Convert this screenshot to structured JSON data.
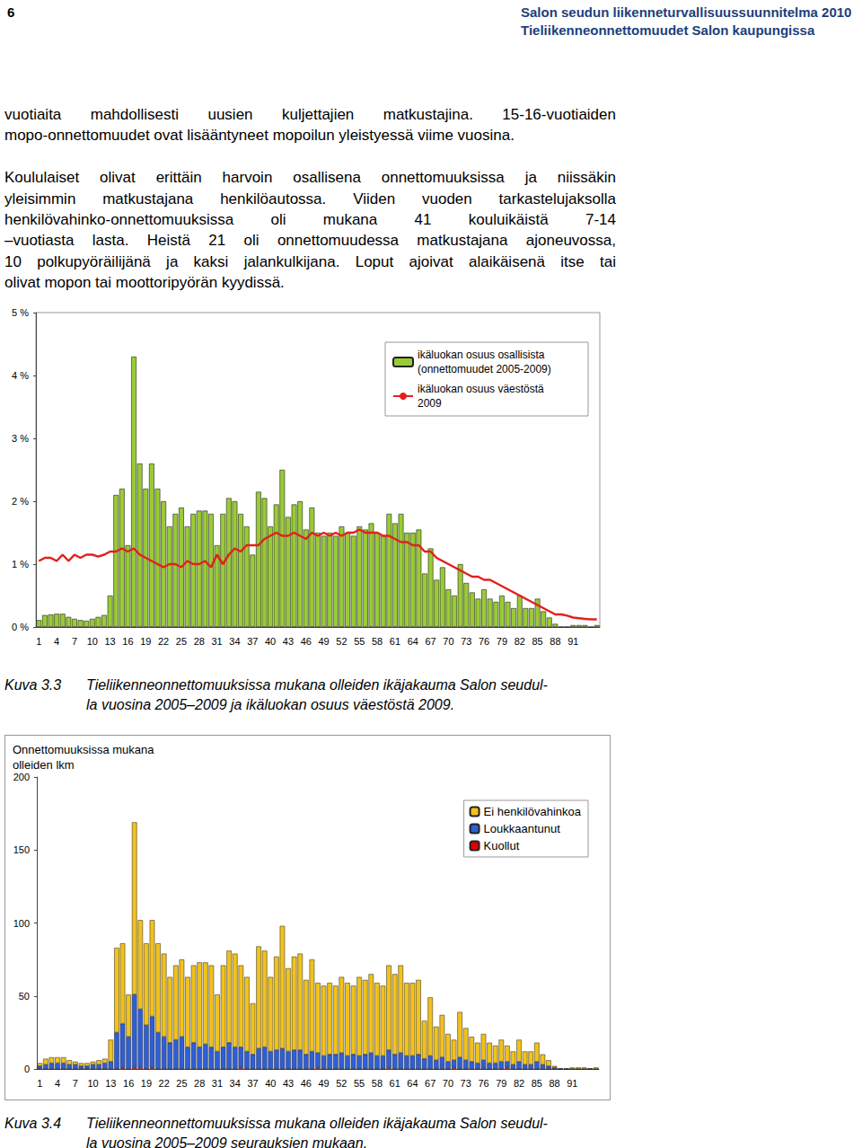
{
  "header": {
    "page": "6",
    "lines": [
      "Salon seudun liikenneturvallisuussuunnitelma 2010",
      "Tieliikenneonnettomuudet Salon kaupungissa"
    ]
  },
  "paragraphs": [
    [
      "vuotiaita mahdollisesti uusien kuljettajien matkustajina. 15-16-vuotiaiden",
      "mopo-onnettomuudet ovat lisääntyneet mopoilun yleistyessä viime vuosina."
    ],
    [
      "Koululaiset olivat erittäin harvoin osallisena onnettomuuksissa ja niissäkin",
      "yleisimmin matkustajana henkilöautossa. Viiden vuoden tarkastelujaksolla",
      "henkilövahinko-onnettomuuksissa oli mukana 41 kouluikäistä 7-14",
      "–vuotiasta lasta. Heistä 21 oli onnettomuudessa matkustajana ajoneuvossa,",
      "10 polkupyöräilijänä ja kaksi jalankulkijana. Loput ajoivat alaikäisenä itse tai",
      "olivat mopon tai moottoripyörän kyydissä."
    ]
  ],
  "captions": [
    {
      "label": "Kuva 3.3",
      "lines": [
        "Tieliikenneonnettomuuksissa mukana olleiden ikäjakauma Salon seudul-",
        "la vuosina 2005–2009 ja ikäluokan osuus väestöstä 2009."
      ]
    },
    {
      "label": "Kuva 3.4",
      "lines": [
        "Tieliikenneonnettomuuksissa mukana olleiden ikäjakauma Salon seudul-",
        "la vuosina 2005–2009 seurauksien mukaan."
      ]
    }
  ],
  "chart_data": [
    {
      "type": "bar",
      "categories": [
        "1",
        null,
        null,
        "4",
        null,
        null,
        "7",
        null,
        null,
        "10",
        null,
        null,
        "13",
        null,
        null,
        "16",
        null,
        null,
        "19",
        null,
        null,
        "22",
        null,
        null,
        "25",
        null,
        null,
        "28",
        null,
        null,
        "31",
        null,
        null,
        "34",
        null,
        null,
        "37",
        null,
        null,
        "40",
        null,
        null,
        "43",
        null,
        null,
        "46",
        null,
        null,
        "49",
        null,
        null,
        "52",
        null,
        null,
        "55",
        null,
        null,
        "58",
        null,
        null,
        "61",
        null,
        null,
        "64",
        null,
        null,
        "67",
        null,
        null,
        "70",
        null,
        null,
        "73",
        null,
        null,
        "76",
        null,
        null,
        "79",
        null,
        null,
        "82",
        null,
        null,
        "85",
        null,
        null,
        "88",
        null,
        null,
        "91",
        null,
        null,
        null,
        null
      ],
      "series": [
        {
          "name": "ikäluokan osuus osallisista (onnettomuudet 2005-2009)",
          "type": "bar",
          "color": "#99cc33",
          "values": [
            0.11,
            0.19,
            0.2,
            0.21,
            0.21,
            0.16,
            0.13,
            0.11,
            0.1,
            0.13,
            0.16,
            0.19,
            0.5,
            2.1,
            2.2,
            1.3,
            4.3,
            2.6,
            2.2,
            2.6,
            2.2,
            2.0,
            1.6,
            1.8,
            1.9,
            1.6,
            1.8,
            1.85,
            1.85,
            1.8,
            1.3,
            1.8,
            2.05,
            2.0,
            1.8,
            1.6,
            1.15,
            2.15,
            2.05,
            1.6,
            1.95,
            2.5,
            1.75,
            1.95,
            2.0,
            1.55,
            1.9,
            1.5,
            1.45,
            1.5,
            1.45,
            1.6,
            1.5,
            1.45,
            1.6,
            1.55,
            1.65,
            1.5,
            1.45,
            1.8,
            1.65,
            1.8,
            1.5,
            1.5,
            1.55,
            0.85,
            1.25,
            0.75,
            0.95,
            0.6,
            0.5,
            1.0,
            0.7,
            0.55,
            0.45,
            0.6,
            0.45,
            0.4,
            0.5,
            0.4,
            0.3,
            0.5,
            0.3,
            0.3,
            0.45,
            0.25,
            0.15,
            0.05,
            0,
            0,
            0.03,
            0.03,
            0.03,
            0,
            0.03
          ]
        },
        {
          "name": "ikäluokan osuus väestöstä 2009",
          "type": "line",
          "color": "#e3201b",
          "values": [
            1.05,
            1.1,
            1.1,
            1.05,
            1.15,
            1.05,
            1.15,
            1.1,
            1.15,
            1.15,
            1.12,
            1.15,
            1.2,
            1.2,
            1.25,
            1.2,
            1.25,
            1.15,
            1.1,
            1.05,
            1.0,
            0.95,
            1.0,
            1.0,
            0.95,
            1.05,
            1.0,
            1.0,
            1.05,
            0.95,
            1.15,
            1.0,
            1.15,
            1.25,
            1.2,
            1.3,
            1.3,
            1.3,
            1.4,
            1.45,
            1.5,
            1.45,
            1.45,
            1.5,
            1.45,
            1.4,
            1.5,
            1.45,
            1.5,
            1.45,
            1.5,
            1.45,
            1.5,
            1.5,
            1.55,
            1.5,
            1.5,
            1.5,
            1.45,
            1.45,
            1.4,
            1.35,
            1.35,
            1.3,
            1.3,
            1.2,
            1.2,
            1.1,
            1.05,
            1.0,
            0.95,
            0.9,
            0.85,
            0.8,
            0.8,
            0.75,
            0.75,
            0.7,
            0.65,
            0.6,
            0.55,
            0.5,
            0.45,
            0.4,
            0.35,
            0.3,
            0.25,
            0.2,
            0.2,
            0.18,
            0.15,
            0.14,
            0.13,
            0.12,
            0.12
          ]
        }
      ],
      "ylim": [
        0,
        5
      ],
      "yticks": [
        {
          "value": 0,
          "label": "0 %"
        },
        {
          "value": 1,
          "label": "1 %"
        },
        {
          "value": 2,
          "label": "2 %"
        },
        {
          "value": 3,
          "label": "3 %"
        },
        {
          "value": 4,
          "label": "4 %"
        },
        {
          "value": 5,
          "label": "5 %"
        }
      ],
      "grid": false,
      "legend": "upper right"
    },
    {
      "type": "bar",
      "stacked": true,
      "ylabel": "Onnettomuuksissa mukana olleiden lkm",
      "categories": [
        "1",
        null,
        null,
        "4",
        null,
        null,
        "7",
        null,
        null,
        "10",
        null,
        null,
        "13",
        null,
        null,
        "16",
        null,
        null,
        "19",
        null,
        null,
        "22",
        null,
        null,
        "25",
        null,
        null,
        "28",
        null,
        null,
        "31",
        null,
        null,
        "34",
        null,
        null,
        "37",
        null,
        null,
        "40",
        null,
        null,
        "43",
        null,
        null,
        "46",
        null,
        null,
        "49",
        null,
        null,
        "52",
        null,
        null,
        "55",
        null,
        null,
        "58",
        null,
        null,
        "61",
        null,
        null,
        "64",
        null,
        null,
        "67",
        null,
        null,
        "70",
        null,
        null,
        "73",
        null,
        null,
        "76",
        null,
        null,
        "79",
        null,
        null,
        "82",
        null,
        null,
        "85",
        null,
        null,
        "88",
        null,
        null,
        "91",
        null,
        null,
        null,
        null
      ],
      "series": [
        {
          "name": "Ei henkilövahinkoa",
          "color": "#f2c21b",
          "values": [
            2,
            4,
            4,
            4,
            4,
            3,
            2,
            2,
            2,
            2,
            3,
            3,
            15,
            58,
            55,
            29,
            118,
            61,
            56,
            66,
            61,
            57,
            45,
            51,
            53,
            48,
            53,
            58,
            56,
            56,
            39,
            56,
            63,
            64,
            56,
            51,
            35,
            70,
            66,
            51,
            64,
            84,
            57,
            64,
            66,
            51,
            63,
            48,
            48,
            49,
            47,
            52,
            50,
            47,
            54,
            51,
            54,
            50,
            48,
            58,
            55,
            60,
            50,
            50,
            51,
            26,
            40,
            23,
            29,
            19,
            14,
            31,
            22,
            17,
            14,
            18,
            14,
            12,
            15,
            11,
            9,
            15,
            9,
            9,
            13,
            7,
            4,
            1,
            0,
            0,
            1,
            1,
            1,
            0,
            1
          ]
        },
        {
          "name": "Loukkaantunut",
          "color": "#2f5fd6",
          "values": [
            2,
            3,
            4,
            4,
            4,
            3,
            3,
            2,
            2,
            3,
            3,
            4,
            5,
            25,
            30,
            22,
            50,
            40,
            30,
            35,
            25,
            22,
            18,
            20,
            22,
            15,
            18,
            15,
            17,
            15,
            12,
            15,
            18,
            15,
            14,
            12,
            10,
            14,
            15,
            12,
            13,
            14,
            12,
            13,
            13,
            10,
            12,
            10,
            9,
            10,
            10,
            11,
            9,
            10,
            9,
            10,
            11,
            9,
            9,
            12,
            10,
            11,
            9,
            9,
            10,
            7,
            9,
            6,
            8,
            5,
            5,
            8,
            6,
            5,
            4,
            6,
            4,
            4,
            5,
            4,
            3,
            5,
            3,
            3,
            5,
            3,
            2,
            1,
            0,
            0,
            0,
            0,
            0,
            0,
            0
          ]
        },
        {
          "name": "Kuollut",
          "color": "#e00000",
          "values": [
            0,
            0,
            0,
            0,
            0,
            0,
            0,
            0,
            0,
            0,
            0,
            0,
            0,
            0,
            1,
            0,
            1,
            1,
            0,
            1,
            0,
            0,
            0,
            0,
            0,
            0,
            0,
            0,
            0,
            0,
            0,
            0,
            0,
            0,
            1,
            0,
            0,
            0,
            0,
            0,
            0,
            0,
            0,
            0,
            0,
            0,
            0,
            1,
            0,
            0,
            0,
            0,
            0,
            0,
            0,
            0,
            0,
            0,
            0,
            1,
            0,
            0,
            0,
            0,
            0,
            0,
            0,
            0,
            0,
            0,
            1,
            0,
            0,
            0,
            0,
            0,
            0,
            0,
            0,
            1,
            0,
            0,
            0,
            0,
            0,
            0,
            0,
            0,
            0,
            0,
            0,
            0,
            0,
            0,
            0
          ]
        }
      ],
      "ylim": [
        0,
        200
      ],
      "yticks": [
        0,
        50,
        100,
        150,
        200
      ],
      "grid": false,
      "legend": "upper right"
    }
  ]
}
